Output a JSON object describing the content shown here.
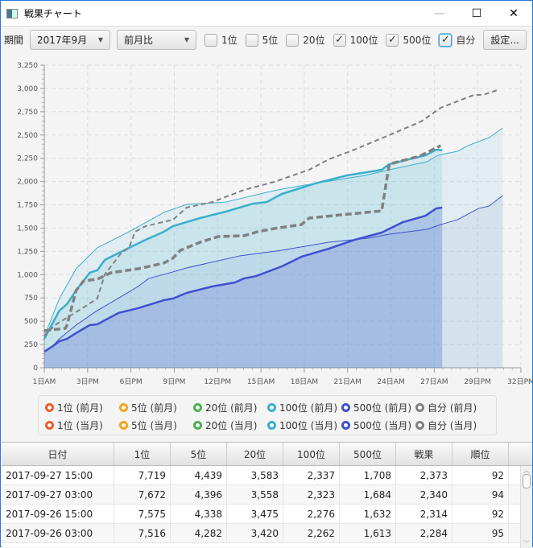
{
  "window": {
    "title": "戦果チャート",
    "minimize": "—",
    "maximize": "☐",
    "close": "✕"
  },
  "toolbar": {
    "period_label": "期間",
    "period_value": "2017年9月",
    "compare_value": "前月比",
    "checkboxes": [
      {
        "label": "1位",
        "checked": false
      },
      {
        "label": "5位",
        "checked": false
      },
      {
        "label": "20位",
        "checked": false
      },
      {
        "label": "100位",
        "checked": true
      },
      {
        "label": "500位",
        "checked": true
      },
      {
        "label": "自分",
        "checked": true
      }
    ],
    "settings_label": "設定..."
  },
  "colors": {
    "r1": "#f05a28",
    "r5": "#f7a21b",
    "r20": "#4caf50",
    "r100": "#3aaecd",
    "r500": "#3f51cf",
    "self": "#808080"
  },
  "chart_data": {
    "type": "area",
    "ylim": [
      0,
      3250
    ],
    "ytick_step": 250,
    "xlim": [
      0,
      31.5
    ],
    "x_ticks": [
      "1日AM",
      "3日PM",
      "6日PM",
      "9日PM",
      "12日PM",
      "15日AM",
      "18日AM",
      "21日AM",
      "24日AM",
      "27日AM",
      "29日PM",
      "32日PM"
    ],
    "y_ticks": [
      "0",
      "250",
      "500",
      "750",
      "1,000",
      "1,250",
      "1,500",
      "1,750",
      "2,000",
      "2,250",
      "2,500",
      "2,750",
      "3,000",
      "3,250"
    ],
    "series": [
      {
        "name": "100位 (前月)",
        "key": "r100",
        "style": "thin",
        "fill": true,
        "points": [
          [
            0,
            337
          ],
          [
            1,
            743
          ],
          [
            2.1,
            1063
          ],
          [
            3.5,
            1288
          ],
          [
            5.6,
            1461
          ],
          [
            7.9,
            1668
          ],
          [
            9.4,
            1754
          ],
          [
            12,
            1780
          ],
          [
            14.7,
            1884
          ],
          [
            15.7,
            1919
          ],
          [
            17.9,
            1980
          ],
          [
            21.2,
            2066
          ],
          [
            22.8,
            2126
          ],
          [
            25.3,
            2213
          ],
          [
            26,
            2282
          ],
          [
            27.3,
            2325
          ],
          [
            28,
            2386
          ],
          [
            29.4,
            2472
          ],
          [
            30.3,
            2576
          ]
        ]
      },
      {
        "name": "100位 (当月)",
        "key": "r100",
        "style": "thick",
        "fill": true,
        "points": [
          [
            0,
            311
          ],
          [
            1,
            614
          ],
          [
            1.5,
            683
          ],
          [
            2.1,
            830
          ],
          [
            3,
            1020
          ],
          [
            3.5,
            1046
          ],
          [
            4,
            1158
          ],
          [
            5.6,
            1288
          ],
          [
            6.7,
            1374
          ],
          [
            7.9,
            1461
          ],
          [
            8.5,
            1521
          ],
          [
            10.3,
            1608
          ],
          [
            12,
            1677
          ],
          [
            13.8,
            1763
          ],
          [
            14.7,
            1780
          ],
          [
            15.7,
            1867
          ],
          [
            17.9,
            1980
          ],
          [
            20,
            2066
          ],
          [
            22.3,
            2126
          ],
          [
            22.8,
            2187
          ],
          [
            25.2,
            2282
          ],
          [
            25.9,
            2342
          ],
          [
            26.3,
            2337
          ]
        ]
      },
      {
        "name": "500位 (前月)",
        "key": "r500",
        "style": "thin",
        "fill": true,
        "points": [
          [
            0,
            182
          ],
          [
            0.5,
            225
          ],
          [
            1,
            311
          ],
          [
            2.1,
            458
          ],
          [
            3.5,
            614
          ],
          [
            5.5,
            804
          ],
          [
            6.2,
            873
          ],
          [
            6.9,
            959
          ],
          [
            8.5,
            1029
          ],
          [
            9.4,
            1072
          ],
          [
            12.9,
            1201
          ],
          [
            15.7,
            1262
          ],
          [
            18.8,
            1348
          ],
          [
            21.4,
            1392
          ],
          [
            22.8,
            1435
          ],
          [
            25.3,
            1487
          ],
          [
            26.2,
            1538
          ],
          [
            27.3,
            1590
          ],
          [
            28.7,
            1711
          ],
          [
            29.4,
            1737
          ],
          [
            30.3,
            1850
          ]
        ]
      },
      {
        "name": "500位 (当月)",
        "key": "r500",
        "style": "thick",
        "fill": true,
        "points": [
          [
            0,
            173
          ],
          [
            0.5,
            225
          ],
          [
            1,
            285
          ],
          [
            1.5,
            311
          ],
          [
            2.1,
            372
          ],
          [
            3,
            458
          ],
          [
            3.5,
            467
          ],
          [
            4,
            510
          ],
          [
            4.9,
            588
          ],
          [
            6.2,
            640
          ],
          [
            7.9,
            726
          ],
          [
            8.5,
            743
          ],
          [
            9.4,
            804
          ],
          [
            11.1,
            873
          ],
          [
            12.6,
            916
          ],
          [
            13.2,
            959
          ],
          [
            14,
            985
          ],
          [
            15.7,
            1089
          ],
          [
            17,
            1193
          ],
          [
            18.8,
            1279
          ],
          [
            20.5,
            1374
          ],
          [
            22.3,
            1452
          ],
          [
            23.7,
            1564
          ],
          [
            25.2,
            1633
          ],
          [
            25.9,
            1711
          ],
          [
            26.3,
            1720
          ]
        ]
      },
      {
        "name": "自分 (前月)",
        "key": "self",
        "style": "thin-dash",
        "fill": false,
        "points": [
          [
            0,
            337
          ],
          [
            0.7,
            458
          ],
          [
            2.1,
            597
          ],
          [
            3.5,
            743
          ],
          [
            4,
            1003
          ],
          [
            5.1,
            1236
          ],
          [
            5.6,
            1288
          ],
          [
            6,
            1461
          ],
          [
            6.7,
            1521
          ],
          [
            8.5,
            1590
          ],
          [
            9.4,
            1720
          ],
          [
            11.1,
            1780
          ],
          [
            13.2,
            1910
          ],
          [
            15.2,
            1997
          ],
          [
            17.5,
            2126
          ],
          [
            18.8,
            2239
          ],
          [
            20.5,
            2343
          ],
          [
            22.8,
            2499
          ],
          [
            24.9,
            2645
          ],
          [
            26.2,
            2792
          ],
          [
            28.4,
            2931
          ],
          [
            29,
            2931
          ],
          [
            30.1,
            2991
          ]
        ]
      },
      {
        "name": "自分 (当月)",
        "key": "self",
        "style": "thick-dash",
        "fill": false,
        "points": [
          [
            0,
            398
          ],
          [
            1.4,
            424
          ],
          [
            1.5,
            458
          ],
          [
            2.1,
            830
          ],
          [
            2.6,
            933
          ],
          [
            3.5,
            951
          ],
          [
            4.4,
            1020
          ],
          [
            6.2,
            1063
          ],
          [
            7.9,
            1124
          ],
          [
            8.5,
            1176
          ],
          [
            9,
            1262
          ],
          [
            10.3,
            1348
          ],
          [
            11.5,
            1409
          ],
          [
            13.2,
            1418
          ],
          [
            14.1,
            1461
          ],
          [
            15.2,
            1495
          ],
          [
            17,
            1538
          ],
          [
            17.5,
            1608
          ],
          [
            22.3,
            1685
          ],
          [
            22.8,
            2187
          ],
          [
            24.8,
            2273
          ],
          [
            26.2,
            2386
          ]
        ]
      }
    ],
    "legend": [
      {
        "label": "1位 (前月)",
        "key": "r1"
      },
      {
        "label": "5位 (前月)",
        "key": "r5"
      },
      {
        "label": "20位 (前月)",
        "key": "r20"
      },
      {
        "label": "100位 (前月)",
        "key": "r100"
      },
      {
        "label": "500位 (前月)",
        "key": "r500"
      },
      {
        "label": "自分 (前月)",
        "key": "self"
      },
      {
        "label": "1位 (当月)",
        "key": "r1"
      },
      {
        "label": "5位 (当月)",
        "key": "r5"
      },
      {
        "label": "20位 (当月)",
        "key": "r20"
      },
      {
        "label": "100位 (当月)",
        "key": "r100"
      },
      {
        "label": "500位 (当月)",
        "key": "r500"
      },
      {
        "label": "自分 (当月)",
        "key": "self"
      }
    ]
  },
  "table": {
    "headers": [
      "日付",
      "1位",
      "5位",
      "20位",
      "100位",
      "500位",
      "戦果",
      "順位"
    ],
    "rows": [
      [
        "2017-09-27 15:00",
        "7,719",
        "4,439",
        "3,583",
        "2,337",
        "1,708",
        "2,373",
        "92"
      ],
      [
        "2017-09-27 03:00",
        "7,672",
        "4,396",
        "3,558",
        "2,323",
        "1,684",
        "2,340",
        "94"
      ],
      [
        "2017-09-26 15:00",
        "7,575",
        "4,338",
        "3,475",
        "2,276",
        "1,632",
        "2,314",
        "92"
      ],
      [
        "2017-09-26 03:00",
        "7,516",
        "4,282",
        "3,420",
        "2,262",
        "1,613",
        "2,284",
        "95"
      ]
    ]
  }
}
